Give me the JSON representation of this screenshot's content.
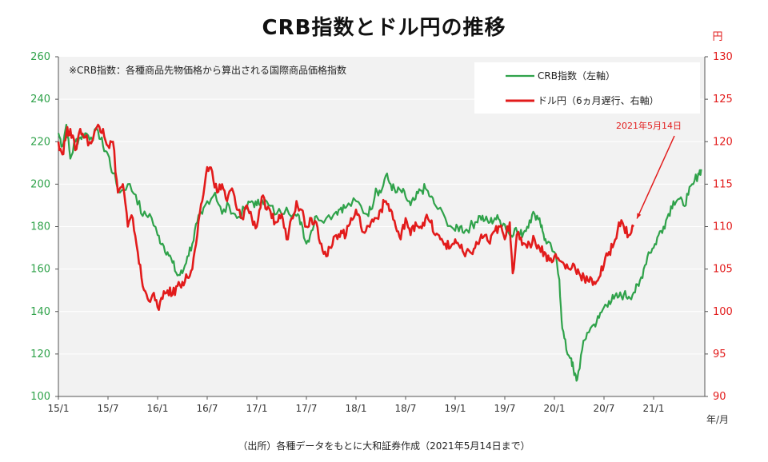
{
  "title": "CRB指数とドル円の推移",
  "footer": "（出所）各種データをもとに大和証券作成（2021年5月14日まで）",
  "chart_data": {
    "type": "line",
    "title": "CRB指数とドル円の推移",
    "note": "※CRB指数：各種商品先物価格から算出される国際商品価格指数",
    "xlabel": "年/月",
    "x_tick_labels": [
      "15/1",
      "15/7",
      "16/1",
      "16/7",
      "17/1",
      "17/7",
      "18/1",
      "18/7",
      "19/1",
      "19/7",
      "20/1",
      "20/7",
      "21/1"
    ],
    "left_axis": {
      "label": "",
      "ylim": [
        100,
        260
      ],
      "ticks": [
        100,
        120,
        140,
        160,
        180,
        200,
        220,
        240,
        260
      ],
      "color": "#2fa24a"
    },
    "right_axis": {
      "label": "円",
      "ylim": [
        90,
        130
      ],
      "ticks": [
        90,
        95,
        100,
        105,
        110,
        115,
        120,
        125,
        130
      ],
      "color": "#e21b1b"
    },
    "series": [
      {
        "name": "CRB指数（左軸）",
        "axis": "left",
        "color": "#2fa24a",
        "points": [
          [
            0.0,
            224
          ],
          [
            0.04,
            218
          ],
          [
            0.08,
            228
          ],
          [
            0.12,
            212
          ],
          [
            0.17,
            220
          ],
          [
            0.22,
            222
          ],
          [
            0.27,
            224
          ],
          [
            0.33,
            222
          ],
          [
            0.4,
            225
          ],
          [
            0.45,
            218
          ],
          [
            0.5,
            214
          ],
          [
            0.55,
            205
          ],
          [
            0.62,
            196
          ],
          [
            0.7,
            200
          ],
          [
            0.78,
            195
          ],
          [
            0.85,
            185
          ],
          [
            0.92,
            186
          ],
          [
            1.0,
            176
          ],
          [
            1.05,
            172
          ],
          [
            1.1,
            168
          ],
          [
            1.15,
            163
          ],
          [
            1.2,
            157
          ],
          [
            1.25,
            158
          ],
          [
            1.3,
            166
          ],
          [
            1.35,
            172
          ],
          [
            1.4,
            182
          ],
          [
            1.45,
            186
          ],
          [
            1.5,
            192
          ],
          [
            1.58,
            196
          ],
          [
            1.65,
            186
          ],
          [
            1.72,
            190
          ],
          [
            1.8,
            184
          ],
          [
            1.88,
            188
          ],
          [
            1.95,
            192
          ],
          [
            2.0,
            190
          ],
          [
            2.05,
            193
          ],
          [
            2.12,
            190
          ],
          [
            2.2,
            186
          ],
          [
            2.3,
            189
          ],
          [
            2.4,
            185
          ],
          [
            2.45,
            182
          ],
          [
            2.5,
            172
          ],
          [
            2.55,
            178
          ],
          [
            2.6,
            185
          ],
          [
            2.7,
            184
          ],
          [
            2.8,
            187
          ],
          [
            2.85,
            189
          ],
          [
            2.9,
            189
          ],
          [
            3.0,
            192
          ],
          [
            3.1,
            186
          ],
          [
            3.15,
            188
          ],
          [
            3.2,
            198
          ],
          [
            3.25,
            196
          ],
          [
            3.3,
            204
          ],
          [
            3.35,
            200
          ],
          [
            3.4,
            196
          ],
          [
            3.45,
            197
          ],
          [
            3.5,
            194
          ],
          [
            3.55,
            190
          ],
          [
            3.6,
            193
          ],
          [
            3.65,
            197
          ],
          [
            3.7,
            198
          ],
          [
            3.75,
            194
          ],
          [
            3.8,
            190
          ],
          [
            3.9,
            184
          ],
          [
            4.0,
            178
          ],
          [
            4.05,
            180
          ],
          [
            4.1,
            178
          ],
          [
            4.15,
            180
          ],
          [
            4.2,
            182
          ],
          [
            4.25,
            185
          ],
          [
            4.3,
            183
          ],
          [
            4.35,
            182
          ],
          [
            4.4,
            184
          ],
          [
            4.45,
            183
          ],
          [
            4.5,
            181
          ],
          [
            4.55,
            176
          ],
          [
            4.6,
            179
          ],
          [
            4.65,
            176
          ],
          [
            4.7,
            178
          ],
          [
            4.75,
            183
          ],
          [
            4.8,
            186
          ],
          [
            4.85,
            184
          ],
          [
            4.88,
            178
          ],
          [
            4.92,
            172
          ],
          [
            5.0,
            168
          ],
          [
            5.05,
            155
          ],
          [
            5.08,
            132
          ],
          [
            5.12,
            122
          ],
          [
            5.17,
            118
          ],
          [
            5.2,
            110
          ],
          [
            5.23,
            108
          ],
          [
            5.28,
            122
          ],
          [
            5.33,
            130
          ],
          [
            5.4,
            134
          ],
          [
            5.45,
            137
          ],
          [
            5.5,
            142
          ],
          [
            5.55,
            145
          ],
          [
            5.6,
            146
          ],
          [
            5.65,
            147
          ],
          [
            5.7,
            148
          ],
          [
            5.75,
            147
          ],
          [
            5.8,
            149
          ],
          [
            5.85,
            152
          ],
          [
            5.9,
            160
          ],
          [
            5.95,
            168
          ],
          [
            6.0,
            170
          ],
          [
            6.05,
            176
          ],
          [
            6.1,
            180
          ],
          [
            6.15,
            186
          ],
          [
            6.2,
            192
          ],
          [
            6.25,
            193
          ],
          [
            6.3,
            190
          ],
          [
            6.35,
            195
          ],
          [
            6.4,
            200
          ],
          [
            6.45,
            205
          ],
          [
            6.48,
            207
          ]
        ]
      },
      {
        "name": "ドル円（6ヵ月遅行、右軸）",
        "axis": "right",
        "color": "#e21b1b",
        "points": [
          [
            0.0,
            120.0
          ],
          [
            0.04,
            118.5
          ],
          [
            0.08,
            121.0
          ],
          [
            0.12,
            121.5
          ],
          [
            0.17,
            119.0
          ],
          [
            0.22,
            121.5
          ],
          [
            0.27,
            120.5
          ],
          [
            0.33,
            119.8
          ],
          [
            0.4,
            122.0
          ],
          [
            0.45,
            121.5
          ],
          [
            0.5,
            119.5
          ],
          [
            0.55,
            120.0
          ],
          [
            0.6,
            114.0
          ],
          [
            0.65,
            115.0
          ],
          [
            0.7,
            110.0
          ],
          [
            0.75,
            111.0
          ],
          [
            0.8,
            107.0
          ],
          [
            0.85,
            103.0
          ],
          [
            0.9,
            101.5
          ],
          [
            0.95,
            102.0
          ],
          [
            1.0,
            100.5
          ],
          [
            1.05,
            101.5
          ],
          [
            1.1,
            102.5
          ],
          [
            1.15,
            102.0
          ],
          [
            1.2,
            103.0
          ],
          [
            1.25,
            103.5
          ],
          [
            1.3,
            104.0
          ],
          [
            1.35,
            105.0
          ],
          [
            1.4,
            109.0
          ],
          [
            1.45,
            113.0
          ],
          [
            1.5,
            117.0
          ],
          [
            1.55,
            116.5
          ],
          [
            1.6,
            114.0
          ],
          [
            1.65,
            115.0
          ],
          [
            1.7,
            113.0
          ],
          [
            1.75,
            114.5
          ],
          [
            1.8,
            112.0
          ],
          [
            1.85,
            111.0
          ],
          [
            1.9,
            112.5
          ],
          [
            1.95,
            111.0
          ],
          [
            2.0,
            110.0
          ],
          [
            2.05,
            113.5
          ],
          [
            2.1,
            112.0
          ],
          [
            2.15,
            111.0
          ],
          [
            2.2,
            110.5
          ],
          [
            2.25,
            111.5
          ],
          [
            2.3,
            108.5
          ],
          [
            2.35,
            111.0
          ],
          [
            2.4,
            113.0
          ],
          [
            2.45,
            112.0
          ],
          [
            2.5,
            110.0
          ],
          [
            2.55,
            111.0
          ],
          [
            2.6,
            110.5
          ],
          [
            2.65,
            108.0
          ],
          [
            2.7,
            106.5
          ],
          [
            2.75,
            107.5
          ],
          [
            2.8,
            109.0
          ],
          [
            2.85,
            109.5
          ],
          [
            2.9,
            109.0
          ],
          [
            2.95,
            111.0
          ],
          [
            3.0,
            112.0
          ],
          [
            3.05,
            110.0
          ],
          [
            3.1,
            109.5
          ],
          [
            3.15,
            110.5
          ],
          [
            3.2,
            111.0
          ],
          [
            3.25,
            112.0
          ],
          [
            3.3,
            113.0
          ],
          [
            3.35,
            112.0
          ],
          [
            3.4,
            110.0
          ],
          [
            3.45,
            108.5
          ],
          [
            3.5,
            111.0
          ],
          [
            3.55,
            109.0
          ],
          [
            3.6,
            110.5
          ],
          [
            3.65,
            110.0
          ],
          [
            3.7,
            111.0
          ],
          [
            3.75,
            110.5
          ],
          [
            3.8,
            109.0
          ],
          [
            3.85,
            108.5
          ],
          [
            3.9,
            108.0
          ],
          [
            3.95,
            107.5
          ],
          [
            4.0,
            108.5
          ],
          [
            4.05,
            107.5
          ],
          [
            4.1,
            106.5
          ],
          [
            4.15,
            107.0
          ],
          [
            4.2,
            107.5
          ],
          [
            4.25,
            108.5
          ],
          [
            4.3,
            109.0
          ],
          [
            4.35,
            108.0
          ],
          [
            4.4,
            109.5
          ],
          [
            4.45,
            110.0
          ],
          [
            4.5,
            108.5
          ],
          [
            4.55,
            110.5
          ],
          [
            4.58,
            104.5
          ],
          [
            4.62,
            109.0
          ],
          [
            4.65,
            108.5
          ],
          [
            4.7,
            108.0
          ],
          [
            4.75,
            108.0
          ],
          [
            4.8,
            108.5
          ],
          [
            4.85,
            107.5
          ],
          [
            4.9,
            107.0
          ],
          [
            4.95,
            106.0
          ],
          [
            5.0,
            106.5
          ],
          [
            5.05,
            106.0
          ],
          [
            5.1,
            105.5
          ],
          [
            5.15,
            105.0
          ],
          [
            5.2,
            105.5
          ],
          [
            5.25,
            104.5
          ],
          [
            5.3,
            104.0
          ],
          [
            5.35,
            103.5
          ],
          [
            5.4,
            103.5
          ],
          [
            5.45,
            104.0
          ],
          [
            5.5,
            105.5
          ],
          [
            5.55,
            107.0
          ],
          [
            5.6,
            108.0
          ],
          [
            5.65,
            110.5
          ],
          [
            5.7,
            110.0
          ],
          [
            5.75,
            109.0
          ],
          [
            5.8,
            110.0
          ]
        ]
      }
    ],
    "annotation": {
      "text": "2021年5月14日",
      "points_to": [
        5.8,
        110.0
      ],
      "color": "#e21b1b"
    }
  }
}
